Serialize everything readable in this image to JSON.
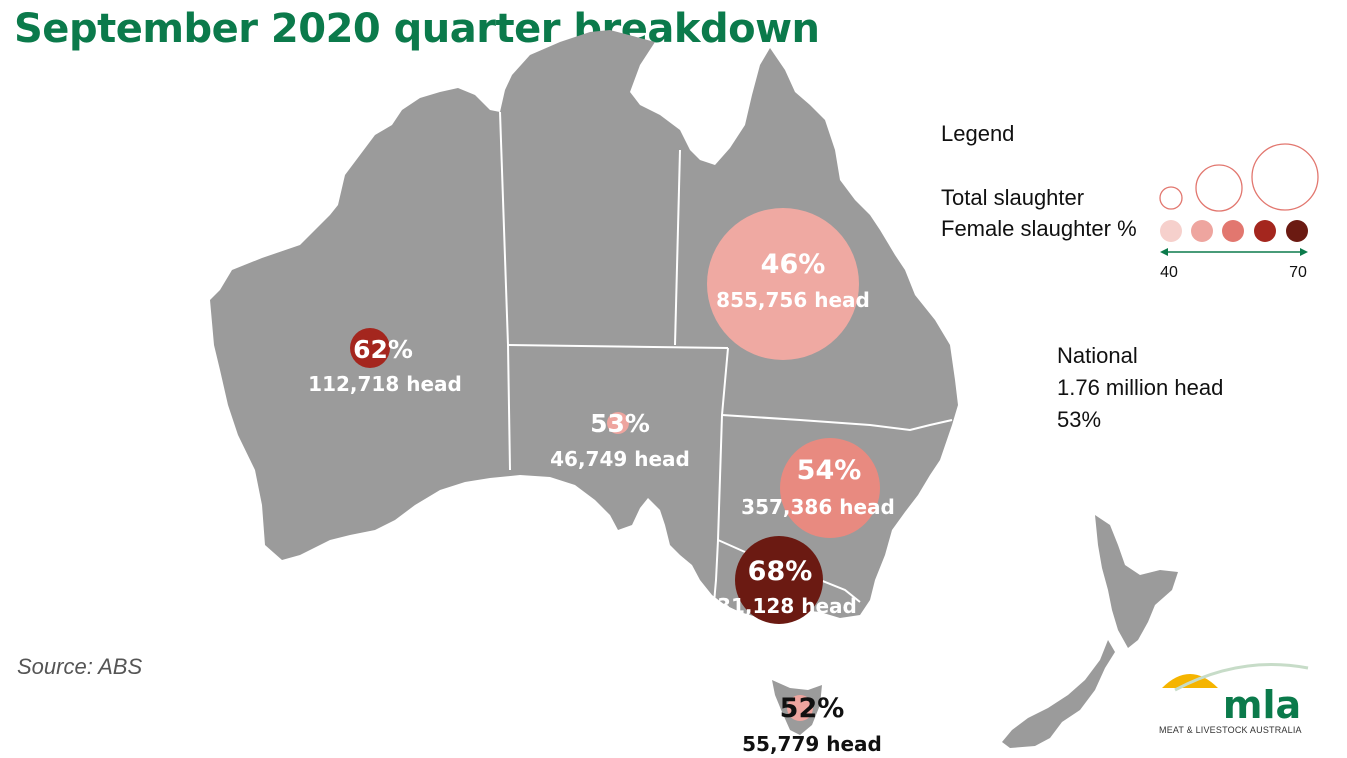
{
  "title": "September 2020 quarter breakdown",
  "legend": {
    "heading": "Legend",
    "size_label": "Total slaughter",
    "color_label": "Female slaughter %",
    "scale_min": "40",
    "scale_max": "70",
    "scale_colors": [
      "#f6d0cc",
      "#eea59f",
      "#e2776f",
      "#a4261e",
      "#6b1a12"
    ]
  },
  "national": {
    "label": "National",
    "total": "1.76 million head",
    "pct": "53%"
  },
  "source": "Source: ABS",
  "logo": {
    "text": "mla",
    "subtitle": "MEAT & LIVESTOCK AUSTRALIA"
  },
  "colors": {
    "title": "#0b7a4b",
    "land": "#9b9b9b",
    "border": "#ffffff"
  },
  "regions": [
    {
      "id": "wa",
      "pct": "62%",
      "head": "112,718 head",
      "pct_value": 62,
      "total_head": 112718,
      "color": "#a4261e",
      "text_color": "#ffffff"
    },
    {
      "id": "sa",
      "pct": "53%",
      "head": "46,749 head",
      "pct_value": 53,
      "total_head": 46749,
      "color": "#eea59f",
      "text_color": "#ffffff"
    },
    {
      "id": "qld",
      "pct": "46%",
      "head": "855,756 head",
      "pct_value": 46,
      "total_head": 855756,
      "color": "#efa9a2",
      "text_color": "#ffffff"
    },
    {
      "id": "nsw",
      "pct": "54%",
      "head": "357,386  head",
      "pct_value": 54,
      "total_head": 357386,
      "color": "#e88a80",
      "text_color": "#ffffff"
    },
    {
      "id": "vic",
      "pct": "68%",
      "head": "331,128 head",
      "pct_value": 68,
      "total_head": 331128,
      "color": "#6b1a12",
      "text_color": "#ffffff"
    },
    {
      "id": "tas",
      "pct": "52%",
      "head": "55,779 head",
      "pct_value": 52,
      "total_head": 55779,
      "color": "#eea59f",
      "text_color": "#111111"
    }
  ]
}
